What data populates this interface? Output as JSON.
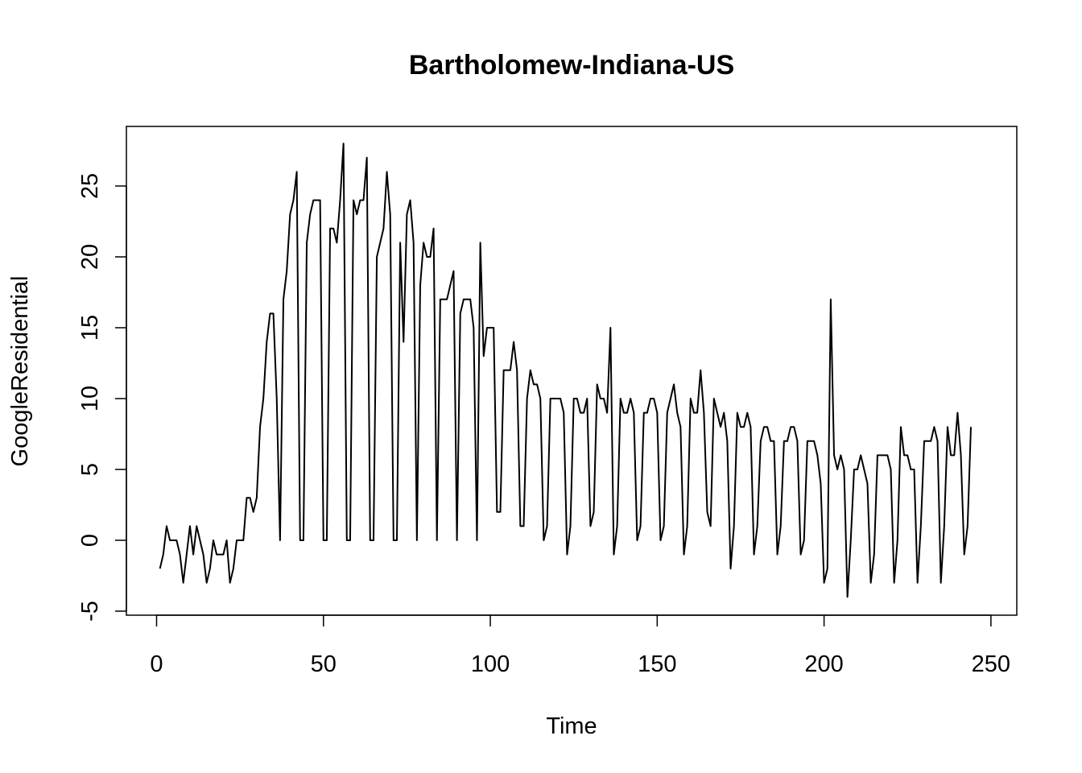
{
  "chart_data": {
    "type": "line",
    "title": "Bartholomew-Indiana-US",
    "xlabel": "Time",
    "ylabel": "GoogleResidential",
    "xlim": [
      0,
      250
    ],
    "ylim": [
      -5,
      28
    ],
    "xticks": [
      0,
      50,
      100,
      150,
      200,
      250
    ],
    "yticks": [
      -5,
      0,
      5,
      10,
      15,
      20,
      25
    ],
    "grid": false,
    "x_start": 1,
    "x_step": 1,
    "values": [
      -2,
      -1,
      1,
      0,
      0,
      0,
      -1,
      -3,
      -1,
      1,
      -1,
      1,
      0,
      -1,
      -3,
      -2,
      0,
      -1,
      -1,
      -1,
      0,
      -3,
      -2,
      0,
      0,
      0,
      3,
      3,
      2,
      3,
      8,
      10,
      14,
      16,
      16,
      10,
      0,
      17,
      19,
      23,
      24,
      26,
      0,
      0,
      21,
      23,
      24,
      24,
      24,
      0,
      0,
      22,
      22,
      21,
      24,
      28,
      0,
      0,
      24,
      23,
      24,
      24,
      27,
      0,
      0,
      20,
      21,
      22,
      26,
      23,
      0,
      0,
      21,
      14,
      23,
      24,
      21,
      0,
      18,
      21,
      20,
      20,
      22,
      0,
      17,
      17,
      17,
      18,
      19,
      0,
      16,
      17,
      17,
      17,
      15,
      0,
      21,
      13,
      15,
      15,
      15,
      2,
      2,
      12,
      12,
      12,
      14,
      12,
      1,
      1,
      10,
      12,
      11,
      11,
      10,
      0,
      1,
      10,
      10,
      10,
      10,
      9,
      -1,
      1,
      10,
      10,
      9,
      9,
      10,
      1,
      2,
      11,
      10,
      10,
      9,
      15,
      -1,
      1,
      10,
      9,
      9,
      10,
      9,
      0,
      1,
      9,
      9,
      10,
      10,
      9,
      0,
      1,
      9,
      10,
      11,
      9,
      8,
      -1,
      1,
      10,
      9,
      9,
      12,
      9,
      2,
      1,
      10,
      9,
      8,
      9,
      7,
      -2,
      1,
      9,
      8,
      8,
      9,
      8,
      -1,
      1,
      7,
      8,
      8,
      7,
      7,
      -1,
      1,
      7,
      7,
      8,
      8,
      7,
      -1,
      0,
      7,
      7,
      7,
      6,
      4,
      -3,
      -2,
      17,
      6,
      5,
      6,
      5,
      -4,
      0,
      5,
      5,
      6,
      5,
      4,
      -3,
      -1,
      6,
      6,
      6,
      6,
      5,
      -3,
      0,
      8,
      6,
      6,
      5,
      5,
      -3,
      1,
      7,
      7,
      7,
      8,
      7,
      -3,
      1,
      8,
      6,
      6,
      9,
      6,
      -1,
      1,
      8
    ]
  }
}
